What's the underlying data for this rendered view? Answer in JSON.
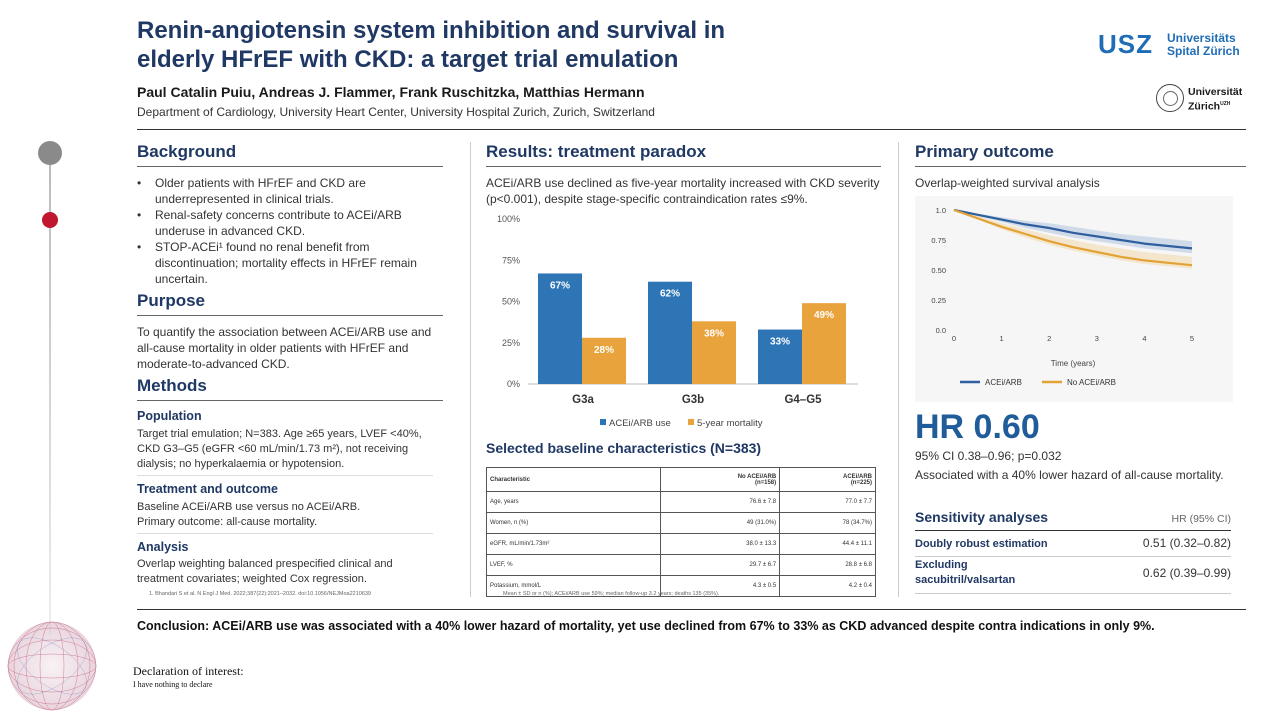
{
  "header": {
    "title_line1": "Renin-angiotensin system inhibition and survival in",
    "title_line2": "elderly HFrEF with CKD: a target trial emulation",
    "authors": "Paul Catalin Puiu, Andreas J. Flammer, Frank Ruschitzka, Matthias Hermann",
    "affiliation": "Department of Cardiology, University Heart Center, University Hospital Zurich, Zurich, Switzerland",
    "logo1_mark": "USZ",
    "logo1_line1": "Universitäts",
    "logo1_line2": "Spital Zürich",
    "logo2_line1": "Universität",
    "logo2_line2": "Zürich",
    "logo2_sup": "UZH"
  },
  "background": {
    "heading": "Background",
    "bullets": [
      "Older patients with HFrEF and CKD are underrepresented in clinical trials.",
      "Renal-safety concerns contribute to ACEi/ARB underuse in advanced CKD.",
      "STOP-ACEi¹ found no renal benefit from discontinuation; mortality effects in HFrEF remain uncertain."
    ]
  },
  "purpose": {
    "heading": "Purpose",
    "text": "To quantify the association between ACEi/ARB use and all-cause mortality in older patients with HFrEF and moderate-to-advanced CKD."
  },
  "methods": {
    "heading": "Methods",
    "population_h": "Population",
    "population_t": "Target trial emulation; N=383. Age ≥65 years, LVEF <40%, CKD G3–G5 (eGFR <60 mL/min/1.73 m²), not receiving dialysis; no hyperkalaemia or hypotension.",
    "treatment_h": "Treatment and outcome",
    "treatment_t1": "Baseline ACEi/ARB use versus no ACEi/ARB.",
    "treatment_t2": "Primary outcome: all-cause mortality.",
    "analysis_h": "Analysis",
    "analysis_t": "Overlap weighting balanced prespecified clinical and treatment covariates; weighted Cox regression.",
    "footnote": "1. Bhandari S et al. N Engl J Med. 2022;387(22):2021–2032. doi:10.1056/NEJMoa2210639"
  },
  "results": {
    "heading": "Results: treatment paradox",
    "text": "ACEi/ARB use declined as five-year mortality increased with CKD severity (p<0.001), despite stage-specific contraindication rates ≤9%.",
    "table_heading": "Selected baseline characteristics (N=383)",
    "table_note": "Mean ± SD or n (%); ACEi/ARB use 59%; median follow-up 3.2 years; deaths 135 (35%).",
    "table": {
      "head": [
        "Characteristic",
        "No ACEi/ARB (n=158)",
        "ACEi/ARB (n=225)"
      ],
      "head_split": [
        [
          "Characteristic",
          ""
        ],
        [
          "No ACEi/ARB",
          "(n=158)"
        ],
        [
          "ACEi/ARB",
          "(n=225)"
        ]
      ],
      "rows": [
        [
          "Age, years",
          "76.6 ± 7.8",
          "77.0 ± 7.7"
        ],
        [
          "Women, n (%)",
          "49 (31.0%)",
          "78 (34.7%)"
        ],
        [
          "eGFR, mL/min/1.73m²",
          "38.0 ± 13.3",
          "44.4 ± 11.1"
        ],
        [
          "LVEF, %",
          "29.7 ± 6.7",
          "28.8 ± 6.8"
        ],
        [
          "Potassium, mmol/L",
          "4.3 ± 0.5",
          "4.2 ± 0.4"
        ]
      ]
    }
  },
  "primary": {
    "heading": "Primary outcome",
    "subtitle": "Overlap-weighted survival analysis",
    "hr_big": "HR 0.60",
    "ci": "95% CI 0.38–0.96; p=0.032",
    "assoc": "Associated with a 40% lower hazard of all-cause mortality.",
    "sens_heading": "Sensitivity analyses",
    "sens_col": "HR (95% CI)",
    "sens_rows": [
      {
        "label": "Doubly robust estimation",
        "value": "0.51 (0.32–0.82)"
      },
      {
        "label": "Excluding sacubitril/valsartan",
        "value": "0.62 (0.39–0.99)"
      }
    ]
  },
  "conclusion": "Conclusion: ACEi/ARB use was associated with a 40% lower hazard of mortality, yet use declined from 67% to 33% as CKD advanced despite contra indications in only 9%.",
  "declaration": {
    "heading": "Declaration of interest:",
    "text": "I have nothing to declare"
  },
  "colors": {
    "navy": "#1f3864",
    "bar_blue": "#2e75b6",
    "bar_orange": "#e8a33d",
    "km_blue": "#2f5f9e",
    "km_orange": "#e2a235"
  },
  "chart_data": [
    {
      "type": "bar",
      "categories": [
        "G3a",
        "G3b",
        "G4–G5"
      ],
      "series": [
        {
          "name": "ACEi/ARB use",
          "values": [
            67,
            62,
            33
          ],
          "labels": [
            "67%",
            "62%",
            "33%"
          ]
        },
        {
          "name": "5-year mortality",
          "values": [
            28,
            38,
            49
          ],
          "labels": [
            "28%",
            "38%",
            "49%"
          ]
        }
      ],
      "ylim": [
        0,
        100
      ],
      "yticks": [
        0,
        25,
        50,
        75,
        100
      ],
      "ytick_labels": [
        "0%",
        "25%",
        "50%",
        "75%",
        "100%"
      ],
      "legend": "bottom",
      "grid": false
    },
    {
      "type": "line",
      "xlabel": "Time (years)",
      "xlim": [
        0,
        5
      ],
      "xticks": [
        0,
        1,
        2,
        3,
        4,
        5
      ],
      "xtick_labels": [
        "0",
        "1",
        "2",
        "3",
        "4",
        "5"
      ],
      "ylim": [
        0,
        1
      ],
      "yticks": [
        0,
        0.25,
        0.5,
        0.75,
        1
      ],
      "ytick_labels": [
        "0.0",
        "0.25",
        "0.50",
        "0.75",
        "1.0"
      ],
      "legend": "bottom",
      "series": [
        {
          "name": "ACEi/ARB",
          "x": [
            0,
            0.5,
            1,
            1.5,
            2,
            2.5,
            3,
            3.5,
            4,
            4.5,
            5
          ],
          "y": [
            1.0,
            0.96,
            0.92,
            0.88,
            0.85,
            0.81,
            0.78,
            0.75,
            0.72,
            0.7,
            0.68
          ],
          "lower": [
            1.0,
            0.95,
            0.9,
            0.85,
            0.81,
            0.77,
            0.74,
            0.71,
            0.68,
            0.66,
            0.64
          ],
          "upper": [
            1.0,
            0.97,
            0.94,
            0.91,
            0.89,
            0.86,
            0.83,
            0.8,
            0.78,
            0.76,
            0.74
          ]
        },
        {
          "name": "No ACEi/ARB",
          "x": [
            0,
            0.5,
            1,
            1.5,
            2,
            2.5,
            3,
            3.5,
            4,
            4.5,
            5
          ],
          "y": [
            1.0,
            0.93,
            0.86,
            0.8,
            0.74,
            0.69,
            0.65,
            0.61,
            0.58,
            0.56,
            0.54
          ],
          "lower": [
            1.0,
            0.92,
            0.84,
            0.77,
            0.71,
            0.66,
            0.62,
            0.58,
            0.55,
            0.53,
            0.51
          ],
          "upper": [
            1.0,
            0.95,
            0.89,
            0.84,
            0.79,
            0.75,
            0.71,
            0.68,
            0.65,
            0.63,
            0.61
          ]
        }
      ]
    }
  ]
}
